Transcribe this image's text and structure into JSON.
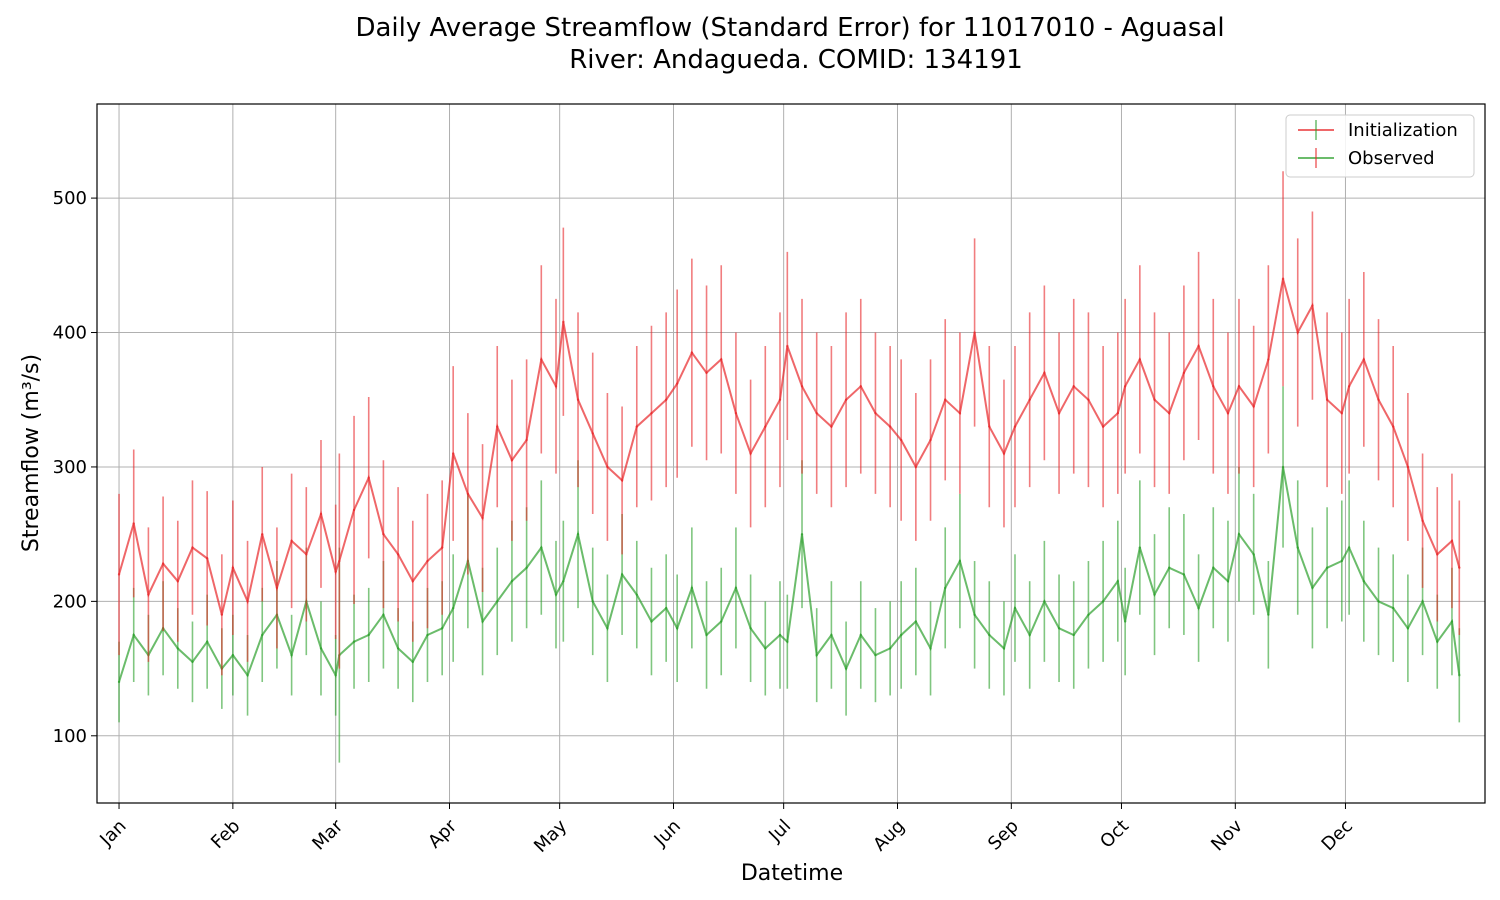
{
  "chart_data": {
    "type": "line",
    "title_line1": "Daily Average Streamflow (Standard Error) for 11017010 - Aguasal",
    "title_line2": "River: Andagueda. COMID: 134191",
    "xlabel": "Datetime",
    "ylabel": "Streamflow (m³/s)",
    "x_ticks": [
      "Jan",
      "Feb",
      "Mar",
      "Apr",
      "May",
      "Jun",
      "Jul",
      "Aug",
      "Sep",
      "Oct",
      "Nov",
      "Dec"
    ],
    "y_ticks": [
      100,
      200,
      300,
      400,
      500
    ],
    "ylim": [
      50,
      570
    ],
    "xlim_day": [
      -6,
      372
    ],
    "grid": true,
    "legend_position": "top-right",
    "colors": {
      "Initialization": "#e8262a",
      "Observed": "#2ca02c"
    },
    "series": [
      {
        "name": "Initialization",
        "days": [
          0,
          4,
          8,
          12,
          16,
          20,
          24,
          28,
          31,
          35,
          39,
          43,
          47,
          51,
          55,
          59,
          60,
          64,
          68,
          72,
          76,
          80,
          84,
          88,
          91,
          95,
          99,
          103,
          107,
          111,
          115,
          119,
          121,
          125,
          129,
          133,
          137,
          141,
          145,
          149,
          152,
          156,
          160,
          164,
          168,
          172,
          176,
          180,
          182,
          186,
          190,
          194,
          198,
          202,
          206,
          210,
          213,
          217,
          221,
          225,
          229,
          233,
          237,
          241,
          244,
          248,
          252,
          256,
          260,
          264,
          268,
          272,
          274,
          278,
          282,
          286,
          290,
          294,
          298,
          302,
          305,
          309,
          313,
          317,
          321,
          325,
          329,
          333,
          335,
          339,
          343,
          347,
          351,
          355,
          359,
          363,
          365
        ],
        "mean": [
          220,
          258,
          205,
          228,
          215,
          240,
          232,
          190,
          225,
          200,
          250,
          210,
          245,
          235,
          265,
          222,
          230,
          268,
          292,
          250,
          235,
          215,
          230,
          240,
          310,
          280,
          262,
          330,
          305,
          320,
          380,
          360,
          408,
          350,
          325,
          300,
          290,
          330,
          340,
          350,
          362,
          385,
          370,
          380,
          340,
          310,
          330,
          350,
          390,
          360,
          340,
          330,
          350,
          360,
          340,
          330,
          320,
          300,
          320,
          350,
          340,
          400,
          330,
          310,
          330,
          350,
          370,
          340,
          360,
          350,
          330,
          340,
          360,
          380,
          350,
          340,
          370,
          390,
          360,
          340,
          360,
          345,
          380,
          440,
          400,
          420,
          350,
          340,
          360,
          380,
          350,
          330,
          300,
          260,
          235,
          245,
          225
        ],
        "err": [
          60,
          55,
          50,
          50,
          45,
          50,
          50,
          45,
          50,
          45,
          50,
          45,
          50,
          50,
          55,
          50,
          80,
          70,
          60,
          55,
          50,
          45,
          50,
          50,
          65,
          60,
          55,
          60,
          60,
          60,
          70,
          65,
          70,
          65,
          60,
          55,
          55,
          60,
          65,
          65,
          70,
          70,
          65,
          70,
          60,
          55,
          60,
          65,
          70,
          65,
          60,
          60,
          65,
          65,
          60,
          60,
          60,
          55,
          60,
          60,
          60,
          70,
          60,
          55,
          60,
          65,
          65,
          60,
          65,
          65,
          60,
          60,
          65,
          70,
          65,
          60,
          65,
          70,
          65,
          60,
          65,
          60,
          70,
          80,
          70,
          70,
          65,
          60,
          65,
          65,
          60,
          60,
          55,
          50,
          50,
          50,
          50
        ]
      },
      {
        "name": "Observed",
        "days": [
          0,
          4,
          8,
          12,
          16,
          20,
          24,
          28,
          31,
          35,
          39,
          43,
          47,
          51,
          55,
          59,
          60,
          64,
          68,
          72,
          76,
          80,
          84,
          88,
          91,
          95,
          99,
          103,
          107,
          111,
          115,
          119,
          121,
          125,
          129,
          133,
          137,
          141,
          145,
          149,
          152,
          156,
          160,
          164,
          168,
          172,
          176,
          180,
          182,
          186,
          190,
          194,
          198,
          202,
          206,
          210,
          213,
          217,
          221,
          225,
          229,
          233,
          237,
          241,
          244,
          248,
          252,
          256,
          260,
          264,
          268,
          272,
          274,
          278,
          282,
          286,
          290,
          294,
          298,
          302,
          305,
          309,
          313,
          317,
          321,
          325,
          329,
          333,
          335,
          339,
          343,
          347,
          351,
          355,
          359,
          363,
          365
        ],
        "mean": [
          140,
          175,
          160,
          180,
          165,
          155,
          170,
          150,
          160,
          145,
          175,
          190,
          160,
          200,
          165,
          145,
          160,
          170,
          175,
          190,
          165,
          155,
          175,
          180,
          195,
          230,
          185,
          200,
          215,
          225,
          240,
          205,
          215,
          250,
          200,
          180,
          220,
          205,
          185,
          195,
          180,
          210,
          175,
          185,
          210,
          180,
          165,
          175,
          170,
          250,
          160,
          175,
          150,
          175,
          160,
          165,
          175,
          185,
          165,
          210,
          230,
          190,
          175,
          165,
          195,
          175,
          200,
          180,
          175,
          190,
          200,
          215,
          185,
          240,
          205,
          225,
          220,
          195,
          225,
          215,
          250,
          235,
          190,
          300,
          240,
          210,
          225,
          230,
          240,
          215,
          200,
          195,
          180,
          200,
          170,
          185,
          145
        ],
        "err": [
          30,
          35,
          30,
          35,
          30,
          30,
          35,
          30,
          30,
          30,
          35,
          40,
          30,
          40,
          35,
          30,
          80,
          35,
          35,
          40,
          30,
          30,
          35,
          35,
          40,
          50,
          40,
          40,
          45,
          45,
          50,
          40,
          45,
          55,
          40,
          40,
          45,
          40,
          40,
          40,
          40,
          45,
          40,
          40,
          45,
          40,
          35,
          40,
          35,
          55,
          35,
          40,
          35,
          40,
          35,
          35,
          40,
          40,
          35,
          45,
          50,
          40,
          40,
          35,
          40,
          40,
          45,
          40,
          40,
          40,
          45,
          45,
          40,
          50,
          45,
          45,
          45,
          40,
          45,
          45,
          50,
          45,
          40,
          60,
          50,
          45,
          45,
          45,
          50,
          45,
          40,
          40,
          40,
          40,
          35,
          40,
          35
        ]
      }
    ]
  }
}
